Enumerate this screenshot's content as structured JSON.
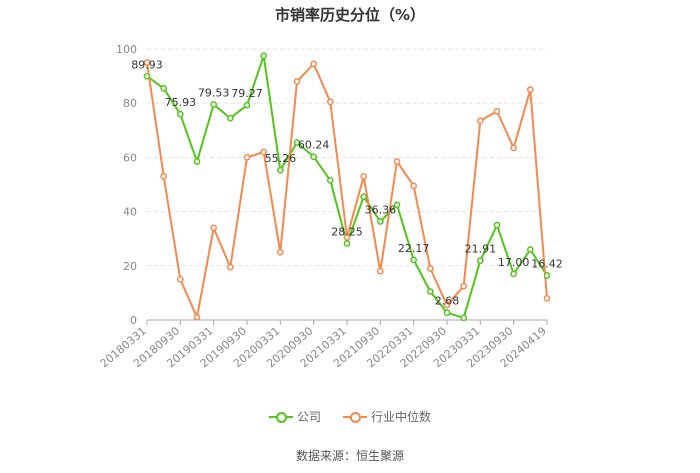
{
  "chart_data": {
    "type": "line",
    "title": "市销率历史分位（%）",
    "xlabel": "",
    "ylabel": "",
    "ylim": [
      0,
      100
    ],
    "yticks": [
      0,
      20,
      40,
      60,
      80,
      100
    ],
    "grid": true,
    "legend_position": "bottom",
    "x_tick_labels": [
      "20180331",
      "20180930",
      "20190331",
      "20190930",
      "20200331",
      "20200930",
      "20210331",
      "20210930",
      "20220331",
      "20220930",
      "20230331",
      "20230930",
      "20240419"
    ],
    "x": [
      "20180331",
      "20180630",
      "20180930",
      "20181231",
      "20190331",
      "20190630",
      "20190930",
      "20191231",
      "20200331",
      "20200630",
      "20200930",
      "20201231",
      "20210331",
      "20210630",
      "20210930",
      "20211231",
      "20220331",
      "20220630",
      "20220930",
      "20221231",
      "20230331",
      "20230630",
      "20230930",
      "20231231",
      "20240419"
    ],
    "series": [
      {
        "name": "公司",
        "color": "#52c41a",
        "values": [
          89.93,
          85.5,
          75.93,
          58.5,
          79.53,
          74.5,
          79.27,
          97.5,
          55.26,
          65.5,
          60.24,
          51.5,
          28.25,
          45.5,
          36.36,
          42.5,
          22.17,
          10.5,
          2.68,
          0.8,
          21.91,
          35.0,
          17.0,
          26.0,
          16.42
        ],
        "labels": {
          "0": "89.93",
          "2": "75.93",
          "4": "79.53",
          "6": "79.27",
          "8": "55.26",
          "10": "60.24",
          "12": "28.25",
          "14": "36.36",
          "16": "22.17",
          "18": "2.68",
          "20": "21.91",
          "22": "17.00",
          "24": "16.42"
        }
      },
      {
        "name": "行业中位数",
        "color": "#f5884f",
        "values": [
          95.0,
          53.0,
          15.0,
          1.0,
          34.0,
          19.5,
          60.0,
          62.0,
          25.0,
          88.0,
          94.5,
          80.5,
          30.5,
          53.0,
          18.0,
          58.5,
          49.5,
          19.0,
          5.5,
          12.5,
          73.5,
          77.0,
          63.5,
          85.0,
          8.0
        ]
      }
    ]
  },
  "legend": {
    "company": "公司",
    "industry": "行业中位数"
  },
  "source": "数据来源：恒生聚源"
}
